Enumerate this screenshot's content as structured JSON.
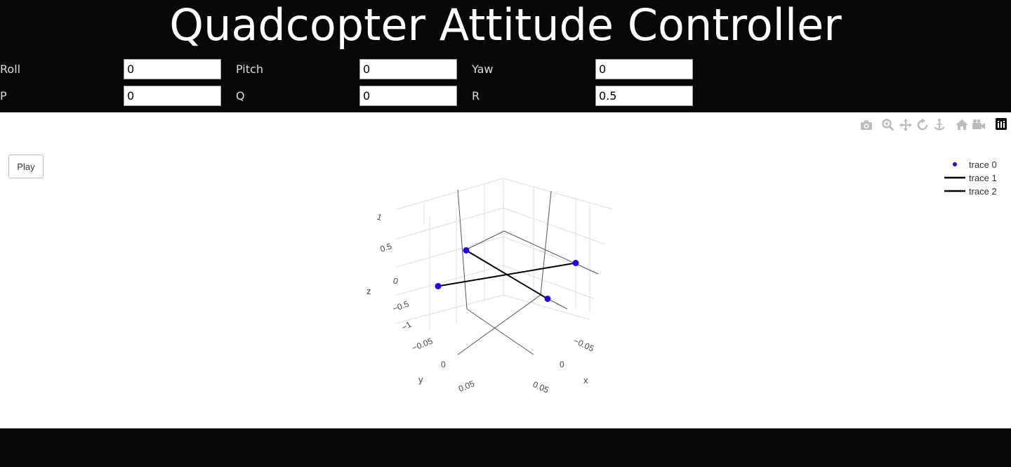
{
  "header": {
    "title": "Quadcopter Attitude Controller",
    "fields": [
      {
        "label": "Roll",
        "value": "0"
      },
      {
        "label": "Pitch",
        "value": "0"
      },
      {
        "label": "Yaw",
        "value": "0"
      },
      {
        "label": "P",
        "value": "0"
      },
      {
        "label": "Q",
        "value": "0"
      },
      {
        "label": "R",
        "value": "0.5"
      }
    ]
  },
  "controls": {
    "play_label": "Play"
  },
  "modebar": [
    "camera-icon",
    "zoom-icon",
    "pan-icon",
    "orbit-rotate-icon",
    "turntable-rotate-icon",
    "home-icon",
    "video-camera-icon",
    "plotly-logo-icon"
  ],
  "colors": {
    "marker": "#2200ee",
    "line": "#000000",
    "header_bg": "#070707"
  },
  "chart_data": {
    "type": "scatter3d",
    "legend": {
      "placement": "top-right",
      "entries": [
        "trace 0",
        "trace 1",
        "trace 2"
      ]
    },
    "axes": {
      "x": {
        "label": "x",
        "ticks": [
          "−0.05",
          "0",
          "0.05"
        ]
      },
      "y": {
        "label": "y",
        "ticks": [
          "−0.05",
          "0",
          "0.05"
        ]
      },
      "z": {
        "label": "z",
        "ticks": [
          "1",
          "0.5",
          "0",
          "−0.5",
          "−1"
        ]
      }
    },
    "series": [
      {
        "name": "trace 0",
        "mode": "markers",
        "points": [
          [
            -0.05,
            0,
            0
          ],
          [
            0.05,
            0,
            0
          ],
          [
            0,
            -0.05,
            0
          ],
          [
            0,
            0.05,
            0
          ]
        ]
      },
      {
        "name": "trace 1",
        "mode": "lines",
        "points": [
          [
            -0.05,
            0,
            0
          ],
          [
            0.05,
            0,
            0
          ]
        ]
      },
      {
        "name": "trace 2",
        "mode": "lines",
        "points": [
          [
            0,
            -0.05,
            0
          ],
          [
            0,
            0.05,
            0
          ]
        ]
      }
    ]
  }
}
